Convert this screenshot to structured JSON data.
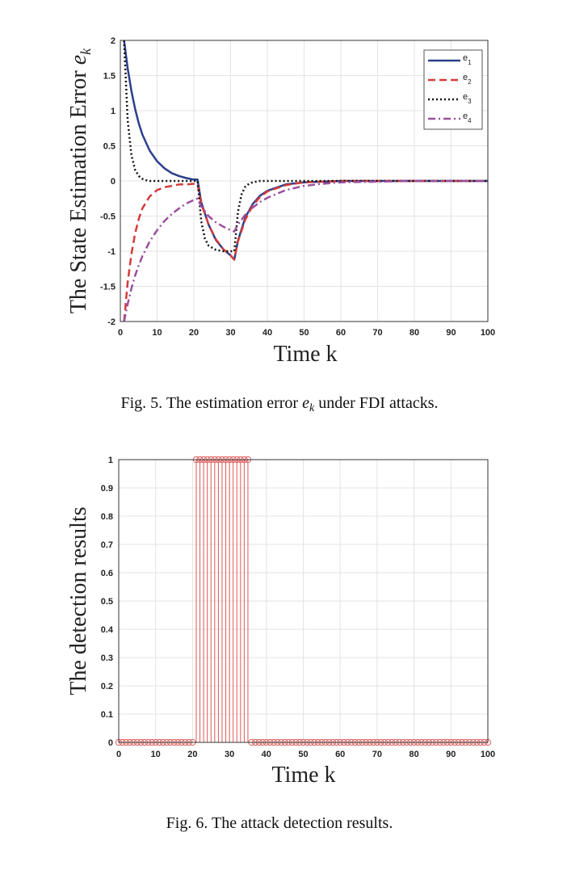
{
  "colors": {
    "e1": "#2b3f8c",
    "e2": "#d43a3a",
    "e3": "#111111",
    "e4": "#9b4f9e",
    "stem": "#e05858"
  },
  "chart_data": [
    {
      "type": "line",
      "xlabel": "Time k",
      "ylabel_main": "The State Estimation Error ",
      "ylabel_sym": "e",
      "ylabel_sub": "k",
      "caption_pre": "Fig. 5.  The estimation error ",
      "caption_sym": "e",
      "caption_sub": "k",
      "caption_post": " under FDI attacks.",
      "xlim": [
        0,
        100
      ],
      "ylim": [
        -2,
        2
      ],
      "xticks": [
        "0",
        "10",
        "20",
        "30",
        "40",
        "50",
        "60",
        "70",
        "80",
        "90",
        "100"
      ],
      "yticks": [
        "2",
        "1.5",
        "1",
        "0.5",
        "0",
        "-0.5",
        "-1",
        "-1.5",
        "-2"
      ],
      "grid": true,
      "legend_position": "top-right",
      "series": [
        {
          "name": "e",
          "sub": "1",
          "style": "solid",
          "x": [
            1,
            2,
            3,
            4,
            5,
            6,
            8,
            10,
            12,
            14,
            16,
            18,
            20,
            21,
            22,
            24,
            26,
            28,
            30,
            31,
            32,
            34,
            36,
            38,
            40,
            45,
            50,
            55,
            60,
            70,
            80,
            90,
            100
          ],
          "y": [
            2.0,
            1.6,
            1.28,
            1.03,
            0.82,
            0.66,
            0.43,
            0.28,
            0.18,
            0.11,
            0.07,
            0.04,
            0.02,
            0.02,
            -0.3,
            -0.62,
            -0.84,
            -0.97,
            -1.06,
            -1.12,
            -0.85,
            -0.52,
            -0.33,
            -0.21,
            -0.14,
            -0.05,
            -0.02,
            -0.01,
            0.0,
            0.0,
            0.0,
            0.0,
            0.0
          ]
        },
        {
          "name": "e",
          "sub": "2",
          "style": "dashed",
          "x": [
            1,
            2,
            3,
            4,
            5,
            6,
            8,
            10,
            12,
            14,
            16,
            18,
            20,
            21,
            22,
            24,
            26,
            28,
            30,
            31,
            32,
            34,
            36,
            38,
            40,
            45,
            50,
            55,
            60,
            70,
            80,
            90,
            100
          ],
          "y": [
            -2.0,
            -1.44,
            -1.04,
            -0.75,
            -0.54,
            -0.39,
            -0.22,
            -0.13,
            -0.09,
            -0.07,
            -0.05,
            -0.05,
            -0.04,
            -0.04,
            -0.32,
            -0.62,
            -0.83,
            -0.97,
            -1.06,
            -1.12,
            -0.86,
            -0.55,
            -0.35,
            -0.23,
            -0.15,
            -0.06,
            -0.02,
            -0.01,
            0.0,
            0.0,
            0.0,
            0.0,
            0.0
          ]
        },
        {
          "name": "e",
          "sub": "3",
          "style": "dotted",
          "x": [
            1,
            2,
            3,
            4,
            5,
            6,
            7,
            8,
            10,
            12,
            15,
            18,
            20,
            21,
            22,
            23,
            24,
            26,
            28,
            30,
            31,
            32,
            33,
            34,
            35,
            36,
            38,
            40,
            50,
            60,
            70,
            80,
            90,
            100
          ],
          "y": [
            2.0,
            0.86,
            0.37,
            0.16,
            0.07,
            0.03,
            0.01,
            0.0,
            0.0,
            0.0,
            0.0,
            0.0,
            0.0,
            0.0,
            -0.57,
            -0.82,
            -0.92,
            -0.98,
            -1.0,
            -1.0,
            -1.0,
            -0.44,
            -0.19,
            -0.08,
            -0.04,
            -0.02,
            0.0,
            0.0,
            0.0,
            0.0,
            0.0,
            0.0,
            0.0,
            0.0
          ]
        },
        {
          "name": "e",
          "sub": "4",
          "style": "dashdot",
          "x": [
            1,
            2,
            3,
            4,
            5,
            6,
            8,
            10,
            12,
            14,
            16,
            18,
            20,
            21,
            22,
            24,
            26,
            28,
            30,
            31,
            32,
            34,
            36,
            38,
            40,
            45,
            50,
            55,
            60,
            70,
            80,
            90,
            100
          ],
          "y": [
            -2.0,
            -1.75,
            -1.53,
            -1.35,
            -1.2,
            -1.07,
            -0.86,
            -0.7,
            -0.57,
            -0.47,
            -0.39,
            -0.32,
            -0.27,
            -0.25,
            -0.36,
            -0.5,
            -0.59,
            -0.65,
            -0.7,
            -0.72,
            -0.62,
            -0.48,
            -0.38,
            -0.3,
            -0.24,
            -0.13,
            -0.07,
            -0.04,
            -0.02,
            -0.01,
            0.0,
            0.0,
            0.0
          ]
        }
      ]
    },
    {
      "type": "stem",
      "xlabel": "Time k",
      "ylabel": "The detection results",
      "caption": "Fig. 6.  The attack detection results.",
      "xlim": [
        0,
        100
      ],
      "ylim": [
        0,
        1
      ],
      "xticks": [
        "0",
        "10",
        "20",
        "30",
        "40",
        "50",
        "60",
        "70",
        "80",
        "90",
        "100"
      ],
      "yticks": [
        "1",
        "0.9",
        "0.8",
        "0.7",
        "0.6",
        "0.5",
        "0.4",
        "0.3",
        "0.2",
        "0.1",
        "0"
      ],
      "grid": true,
      "x_start": 0,
      "x_end": 100,
      "attack_interval": [
        21,
        35
      ],
      "values_outside": 0,
      "values_inside": 1
    }
  ]
}
